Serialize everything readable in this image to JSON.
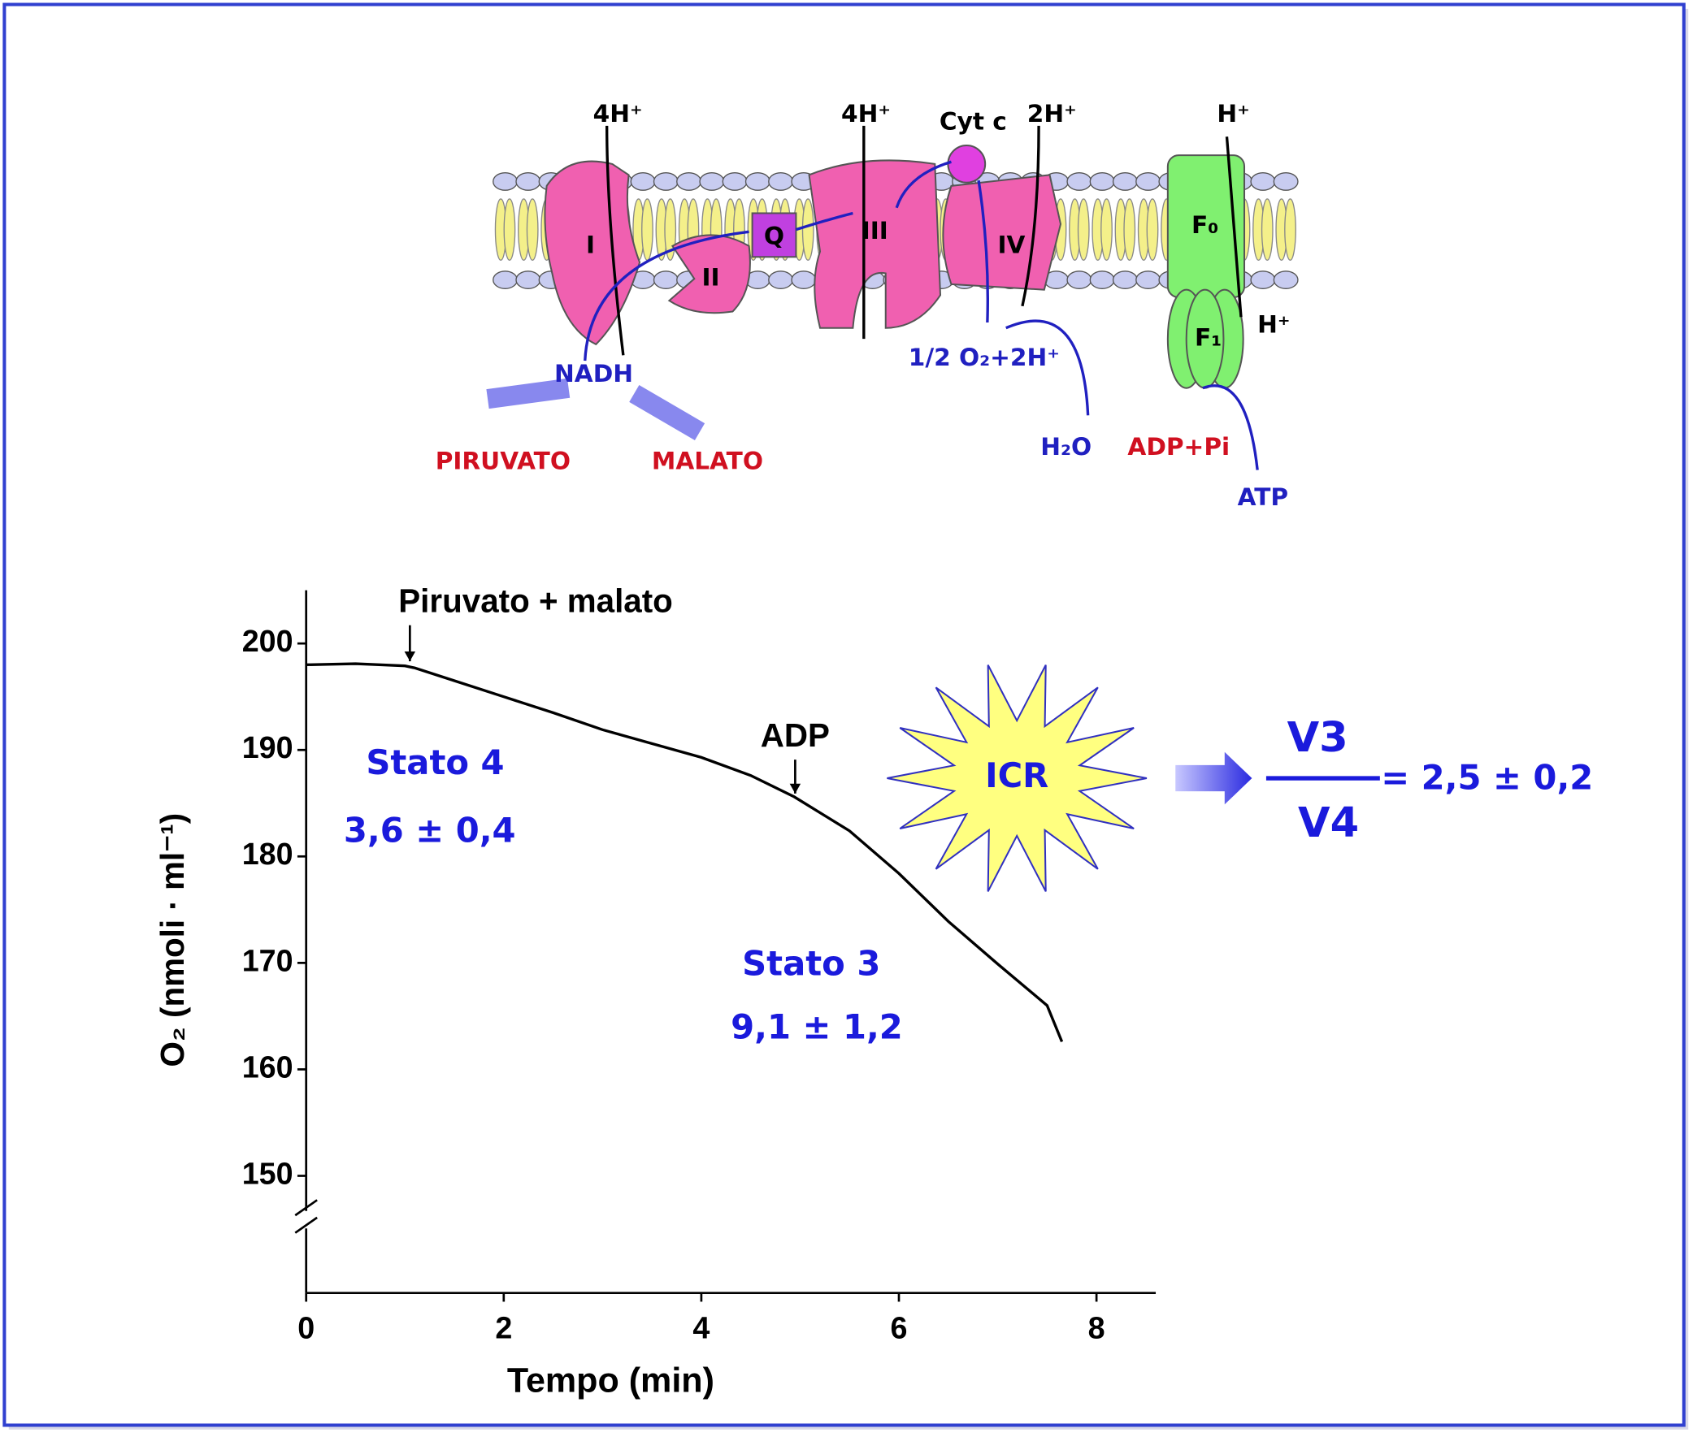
{
  "diagram": {
    "labels": [
      "4H⁺",
      "4H⁺",
      "Cyt c",
      "2H⁺",
      "H⁺",
      "I",
      "II",
      "Q",
      "III",
      "IV",
      "F₀",
      "F₁",
      "H⁺",
      "1/2 O₂+2H⁺",
      "NADH",
      "PIRUVATO",
      "MALATO",
      "H₂O",
      "ADP+Pi",
      "ATP"
    ]
  },
  "chart_data": {
    "type": "line",
    "color": "#000000",
    "x": [
      0,
      0.5,
      1.0,
      1.1,
      1.5,
      2.0,
      2.5,
      3.0,
      3.5,
      4.0,
      4.5,
      4.94,
      5.5,
      6.0,
      6.5,
      7.0,
      7.5,
      7.65
    ],
    "values": [
      198.0,
      198.1,
      197.9,
      197.7,
      196.5,
      195.0,
      193.5,
      191.9,
      190.6,
      189.3,
      187.6,
      185.6,
      182.4,
      178.4,
      173.9,
      169.9,
      166.0,
      162.6
    ],
    "xlim": [
      0,
      8.6
    ],
    "ylim": [
      139,
      205
    ],
    "xticks": [
      0,
      2,
      4,
      6,
      8
    ],
    "yticks": [
      150,
      160,
      170,
      180,
      190,
      200
    ],
    "x_label": "Tempo (min)",
    "y_label": "O₂ (nmoli · ml⁻¹)",
    "annotations": [
      {
        "text": "Piruvato + malato",
        "x": 1.05
      },
      {
        "text": "ADP",
        "x": 4.95
      }
    ],
    "text_labels": [
      "Stato 4",
      "3,6 ± 0,4",
      "Stato 3",
      "9,1 ± 1,2",
      "ICR",
      "V3",
      "V4",
      "= 2,5 ± 0,2"
    ]
  }
}
